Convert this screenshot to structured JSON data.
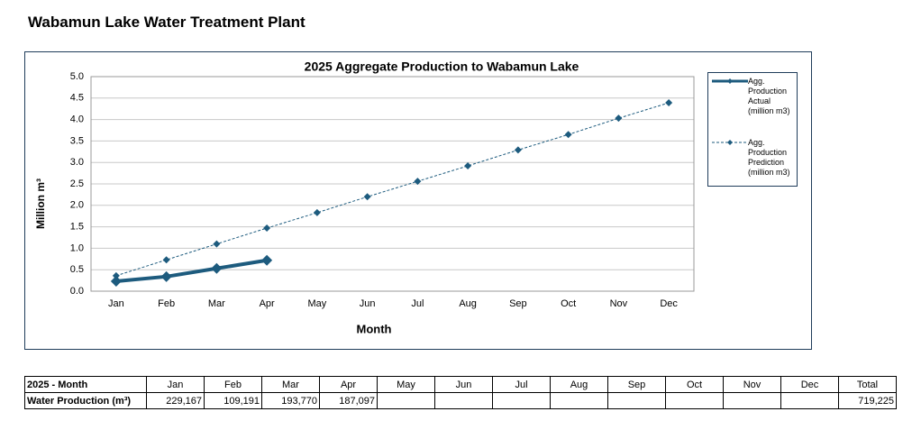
{
  "header": {
    "title": "Wabamun Lake Water Treatment Plant"
  },
  "chart_data": {
    "type": "line",
    "title": "2025 Aggregate Production to Wabamun Lake",
    "x_label": "Month",
    "y_label": "Million m³",
    "categories": [
      "Jan",
      "Feb",
      "Mar",
      "Apr",
      "May",
      "Jun",
      "Jul",
      "Aug",
      "Sep",
      "Oct",
      "Nov",
      "Dec"
    ],
    "series": [
      {
        "name": "Agg. Production Actual (million m3)",
        "color": "#1d5b7e",
        "style": "solid",
        "values": [
          0.23,
          0.34,
          0.53,
          0.72,
          null,
          null,
          null,
          null,
          null,
          null,
          null,
          null
        ]
      },
      {
        "name": "Agg. Production Prediction (million m3)",
        "color": "#1d5b7e",
        "style": "dashed",
        "values": [
          0.36,
          0.73,
          1.1,
          1.47,
          1.83,
          2.2,
          2.56,
          2.92,
          3.29,
          3.65,
          4.03,
          4.39
        ]
      }
    ],
    "ylim": [
      0,
      5
    ],
    "yticks": [
      {
        "value": 0,
        "label": "0.0"
      },
      0.5,
      {
        "value": 1,
        "label": "1.0"
      },
      1.5,
      {
        "value": 2,
        "label": "2.0"
      },
      2.5,
      {
        "value": 3,
        "label": "3.0"
      },
      3.5,
      {
        "value": 4,
        "label": "4.0"
      },
      4.5,
      {
        "value": 5,
        "label": "5.0"
      }
    ],
    "grid": true,
    "legend": "right"
  },
  "table": {
    "header": [
      "2025 - Month",
      "Jan",
      "Feb",
      "Mar",
      "Apr",
      "May",
      "Jun",
      "Jul",
      "Aug",
      "Sep",
      "Oct",
      "Nov",
      "Dec",
      "Total"
    ],
    "rows": [
      [
        "Water Production (m³)",
        "229,167",
        "109,191",
        "193,770",
        "187,097",
        null,
        null,
        null,
        null,
        null,
        null,
        null,
        null,
        "719,225"
      ]
    ]
  }
}
